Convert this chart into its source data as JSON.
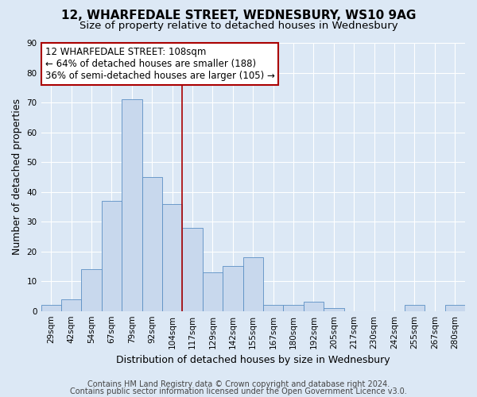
{
  "title": "12, WHARFEDALE STREET, WEDNESBURY, WS10 9AG",
  "subtitle": "Size of property relative to detached houses in Wednesbury",
  "xlabel": "Distribution of detached houses by size in Wednesbury",
  "ylabel": "Number of detached properties",
  "footnote1": "Contains HM Land Registry data © Crown copyright and database right 2024.",
  "footnote2": "Contains public sector information licensed under the Open Government Licence v3.0.",
  "categories": [
    "29sqm",
    "42sqm",
    "54sqm",
    "67sqm",
    "79sqm",
    "92sqm",
    "104sqm",
    "117sqm",
    "129sqm",
    "142sqm",
    "155sqm",
    "167sqm",
    "180sqm",
    "192sqm",
    "205sqm",
    "217sqm",
    "230sqm",
    "242sqm",
    "255sqm",
    "267sqm",
    "280sqm"
  ],
  "values": [
    2,
    4,
    14,
    37,
    71,
    45,
    36,
    28,
    13,
    15,
    18,
    2,
    2,
    3,
    1,
    0,
    0,
    0,
    2,
    0,
    2
  ],
  "vline_x": 6.5,
  "pct_smaller": 64,
  "n_smaller": 188,
  "pct_larger_semi": 36,
  "n_larger_semi": 105,
  "bar_color": "#c8d8ed",
  "bar_edge_color": "#5b8fc4",
  "vline_color": "#aa0000",
  "box_edge_color": "#aa0000",
  "ylim": [
    0,
    90
  ],
  "yticks": [
    0,
    10,
    20,
    30,
    40,
    50,
    60,
    70,
    80,
    90
  ],
  "background_color": "#dce8f5",
  "plot_bg_color": "#dce8f5",
  "grid_color": "#ffffff",
  "title_fontsize": 11,
  "subtitle_fontsize": 9.5,
  "axis_label_fontsize": 9,
  "tick_fontsize": 7.5,
  "annotation_fontsize": 8.5,
  "footnote_fontsize": 7
}
